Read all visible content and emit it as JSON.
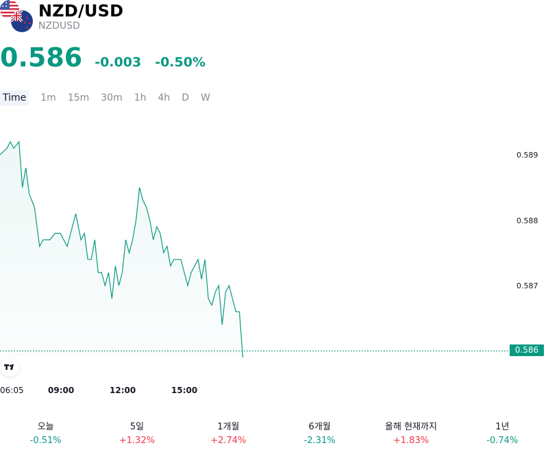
{
  "header": {
    "title": "NZD/USD",
    "symbol": "NZDUSD"
  },
  "quote": {
    "price": "0.586",
    "change": "-0.003",
    "change_percent": "-0.50%",
    "color": "#089981"
  },
  "timeframes": [
    "Time",
    "1m",
    "15m",
    "30m",
    "1h",
    "4h",
    "D",
    "W"
  ],
  "active_timeframe": "Time",
  "chart_data": {
    "type": "area",
    "color": "#089981",
    "y_ticks": [
      "0.589",
      "0.588",
      "0.587"
    ],
    "x_ticks": [
      "06:05",
      "09:00",
      "12:00",
      "15:00"
    ],
    "ylim": [
      0.5858,
      0.5893
    ],
    "last_value": "0.586",
    "series": [
      {
        "x": [
          "06:05",
          "06:25",
          "06:35",
          "06:45",
          "07:00",
          "07:10",
          "07:20",
          "07:30",
          "07:45",
          "08:00",
          "08:10",
          "08:20",
          "08:30",
          "08:45",
          "09:00",
          "09:10",
          "09:20",
          "09:30",
          "09:45",
          "10:00",
          "10:10",
          "10:20",
          "10:30",
          "10:40",
          "10:50",
          "11:00",
          "11:10",
          "11:20",
          "11:30",
          "11:40",
          "11:50",
          "12:00",
          "12:10",
          "12:20",
          "12:30",
          "12:40",
          "12:50",
          "13:00",
          "13:10",
          "13:20",
          "13:30",
          "13:40",
          "13:50",
          "14:00",
          "14:10",
          "14:20",
          "14:30",
          "14:40",
          "14:50",
          "15:00",
          "15:10",
          "15:20",
          "15:30",
          "15:40",
          "15:50",
          "16:00",
          "16:10",
          "16:20",
          "16:30",
          "16:40",
          "16:50",
          "17:00",
          "17:10",
          "17:20",
          "17:30",
          "17:40",
          "17:50"
        ],
        "values": [
          0.589,
          0.5891,
          0.5892,
          0.5891,
          0.5892,
          0.5885,
          0.5888,
          0.5884,
          0.5882,
          0.5876,
          0.5877,
          0.5877,
          0.5877,
          0.5878,
          0.5878,
          0.5877,
          0.5876,
          0.5878,
          0.5881,
          0.5877,
          0.5878,
          0.5874,
          0.5874,
          0.5877,
          0.5872,
          0.5872,
          0.587,
          0.5872,
          0.5868,
          0.5873,
          0.587,
          0.5872,
          0.5877,
          0.5875,
          0.5877,
          0.588,
          0.5885,
          0.5883,
          0.5882,
          0.588,
          0.5877,
          0.5879,
          0.5878,
          0.5875,
          0.5876,
          0.5873,
          0.5874,
          0.5874,
          0.5874,
          0.5872,
          0.587,
          0.5872,
          0.5873,
          0.5874,
          0.5871,
          0.5874,
          0.5868,
          0.5867,
          0.5869,
          0.587,
          0.5864,
          0.5869,
          0.587,
          0.5868,
          0.5866,
          0.5866,
          0.5859
        ]
      }
    ]
  },
  "performance": [
    {
      "label": "오늘",
      "value": "-0.51%",
      "dir": "neg"
    },
    {
      "label": "5일",
      "value": "+1.32%",
      "dir": "pos"
    },
    {
      "label": "1개월",
      "value": "+2.74%",
      "dir": "pos"
    },
    {
      "label": "6개월",
      "value": "-2.31%",
      "dir": "neg"
    },
    {
      "label": "올해 현재까지",
      "value": "+1.83%",
      "dir": "pos"
    },
    {
      "label": "1년",
      "value": "-0.74%",
      "dir": "neg"
    }
  ]
}
